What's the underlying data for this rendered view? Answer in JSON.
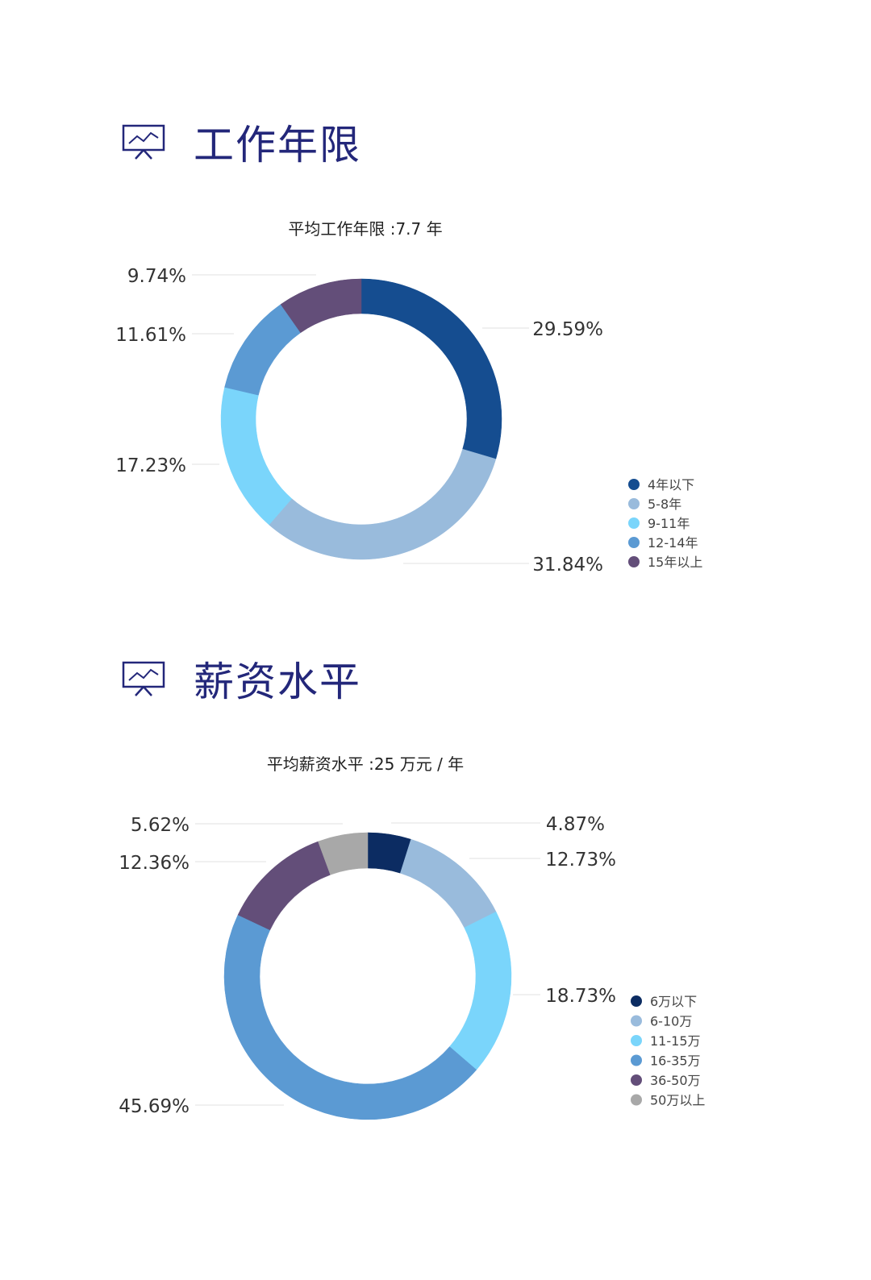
{
  "sections": [
    {
      "title": "工作年限",
      "icon": "presentation-chart-icon"
    },
    {
      "title": "薪资水平",
      "icon": "presentation-chart-icon"
    }
  ],
  "chart_data": [
    {
      "type": "pie",
      "subtitle": "平均工作年限 :7.7 年",
      "categories": [
        "4年以下",
        "5-8年",
        "9-11年",
        "12-14年",
        "15年以上"
      ],
      "values": [
        29.59,
        31.84,
        17.23,
        11.61,
        9.74
      ],
      "value_labels": [
        "29.59%",
        "31.84%",
        "17.23%",
        "11.61%",
        "9.74%"
      ],
      "colors": [
        "#154d90",
        "#99bbdc",
        "#7ad5fb",
        "#5b9ad3",
        "#634e79"
      ],
      "legend": "right"
    },
    {
      "type": "pie",
      "subtitle": "平均薪资水平 :25 万元 / 年",
      "categories": [
        "6万以下",
        "6-10万",
        "11-15万",
        "16-35万",
        "36-50万",
        "50万以上"
      ],
      "values": [
        4.87,
        12.73,
        18.73,
        45.69,
        12.36,
        5.62
      ],
      "value_labels": [
        "4.87%",
        "12.73%",
        "18.73%",
        "45.69%",
        "12.36%",
        "5.62%"
      ],
      "colors": [
        "#0c2c62",
        "#99bbdc",
        "#7ad5fb",
        "#5b9ad3",
        "#634e79",
        "#a8a8a8"
      ],
      "legend": "right"
    }
  ]
}
